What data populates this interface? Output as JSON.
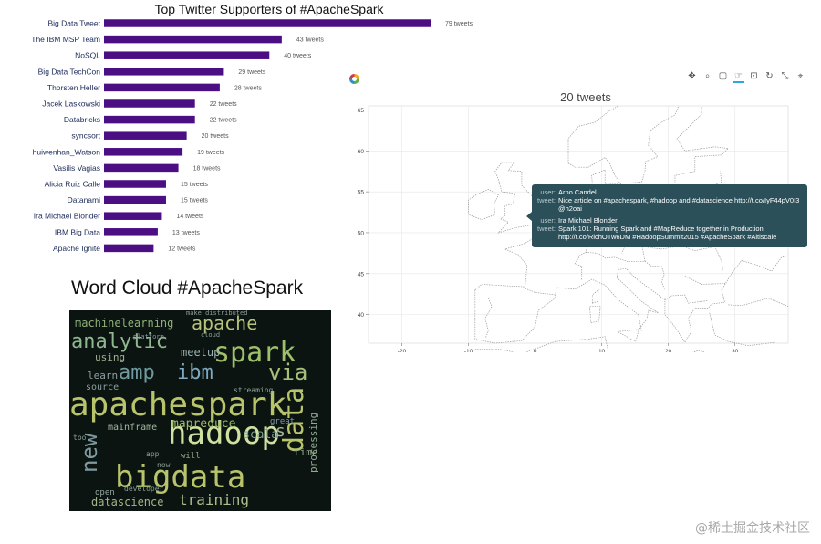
{
  "chart_data": {
    "type": "bar",
    "orientation": "horizontal",
    "title": "Top Twitter Supporters of #ApacheSpark",
    "categories": [
      "Big Data Tweet",
      "The IBM MSP Team",
      "NoSQL",
      "Big Data TechCon",
      "Thorsten Heller",
      "Jacek Laskowski",
      "Databricks",
      "syncsort",
      "huiwenhan_Watson",
      "Vasilis Vagias",
      "Alicia Ruiz Calle",
      "Datanami",
      "Ira Michael Blonder",
      "IBM Big Data",
      "Apache Ignite"
    ],
    "values": [
      79,
      43,
      40,
      29,
      28,
      22,
      22,
      20,
      19,
      18,
      15,
      15,
      14,
      13,
      12
    ],
    "value_labels": [
      "79 tweets",
      "43 tweets",
      "40 tweets",
      "29 tweets",
      "28 tweets",
      "22 tweets",
      "22 tweets",
      "20 tweets",
      "19 tweets",
      "18 tweets",
      "15 tweets",
      "15 tweets",
      "14 tweets",
      "13 tweets",
      "12 tweets"
    ],
    "bar_color": "#4b0e83"
  },
  "wordcloud": {
    "title": "Word Cloud #ApacheSpark",
    "background": "#0c1411",
    "words": [
      {
        "text": "apachespark",
        "color": "#b8c46c",
        "size": 36
      },
      {
        "text": "bigdata",
        "color": "#b8c46c",
        "size": 34
      },
      {
        "text": "hadoop",
        "color": "#cfe0a0",
        "size": 34
      },
      {
        "text": "spark",
        "color": "#9fc06a",
        "size": 30
      },
      {
        "text": "amp",
        "color": "#6e9aa0",
        "size": 22
      },
      {
        "text": "ibm",
        "color": "#7fa9c0",
        "size": 22
      },
      {
        "text": "via",
        "color": "#a6c07a",
        "size": 24
      },
      {
        "text": "analytic",
        "color": "#8fb890",
        "size": 22
      },
      {
        "text": "apache",
        "color": "#b7c37a",
        "size": 20
      },
      {
        "text": "data",
        "color": "#b8c46c",
        "size": 30
      },
      {
        "text": "new",
        "color": "#7e9aa0",
        "size": 24
      },
      {
        "text": "training",
        "color": "#a9c08a",
        "size": 16
      },
      {
        "text": "datascience",
        "color": "#a1b58a",
        "size": 12
      },
      {
        "text": "machinelearning",
        "color": "#8fb07a",
        "size": 12
      },
      {
        "text": "mapreduce",
        "color": "#9bb96a",
        "size": 13
      },
      {
        "text": "mainframe",
        "color": "#a2b8a0",
        "size": 10
      },
      {
        "text": "meetup",
        "color": "#9ab0b0",
        "size": 12
      },
      {
        "text": "scala",
        "color": "#7fa090",
        "size": 13
      },
      {
        "text": "processing",
        "color": "#8eaa90",
        "size": 11
      },
      {
        "text": "learn",
        "color": "#8fa0a0",
        "size": 11
      },
      {
        "text": "using",
        "color": "#a0b090",
        "size": 11
      },
      {
        "text": "source",
        "color": "#8a9fa0",
        "size": 10
      },
      {
        "text": "open",
        "color": "#95a8a0",
        "size": 9
      },
      {
        "text": "developer",
        "color": "#8aa098",
        "size": 8
      },
      {
        "text": "time",
        "color": "#8ea98a",
        "size": 11
      },
      {
        "text": "make distributed",
        "color": "#8a9c98",
        "size": 7
      },
      {
        "text": "streaming",
        "color": "#8ea29a",
        "size": 8
      },
      {
        "text": "platform",
        "color": "#8a9fa0",
        "size": 7
      },
      {
        "text": "great",
        "color": "#7d98a8",
        "size": 9
      },
      {
        "text": "cloud",
        "color": "#8aa098",
        "size": 7
      },
      {
        "text": "will",
        "color": "#93a890",
        "size": 9
      },
      {
        "text": "tool",
        "color": "#8aa098",
        "size": 8
      },
      {
        "text": "app",
        "color": "#8aa098",
        "size": 8
      },
      {
        "text": "now",
        "color": "#8aa098",
        "size": 8
      },
      {
        "text": "s",
        "color": "#a6b89a",
        "size": 18
      }
    ]
  },
  "map": {
    "toolbar_icons": [
      "pan-icon",
      "zoom-icon",
      "box-zoom-icon",
      "tap-icon",
      "save-icon",
      "reset-icon",
      "resize-icon",
      "hover-icon"
    ],
    "title": "20 tweets",
    "x_ticks": [
      "-20",
      "-10",
      "0",
      "10",
      "20",
      "30"
    ],
    "y_ticks": [
      "65",
      "60",
      "55",
      "50",
      "45",
      "40"
    ],
    "x_range": [
      -25,
      38
    ],
    "y_range": [
      36.5,
      65.5
    ]
  },
  "tooltip": {
    "entries": [
      {
        "user_key": "user:",
        "user": "Arno Candel",
        "tweet_key": "tweet:",
        "tweet": "Nice article on #apachespark, #hadoop and #datascience http://t.co/IyF44pV0I3 @h2oai"
      },
      {
        "user_key": "user:",
        "user": "Ira Michael Blonder",
        "tweet_key": "tweet:",
        "tweet": "Spark 101: Running Spark and #MapReduce together in Production http://t.co/RichOTw6DM #HadoopSummit2015 #ApacheSpark #Altiscale"
      }
    ]
  },
  "watermark": "@稀土掘金技术社区"
}
